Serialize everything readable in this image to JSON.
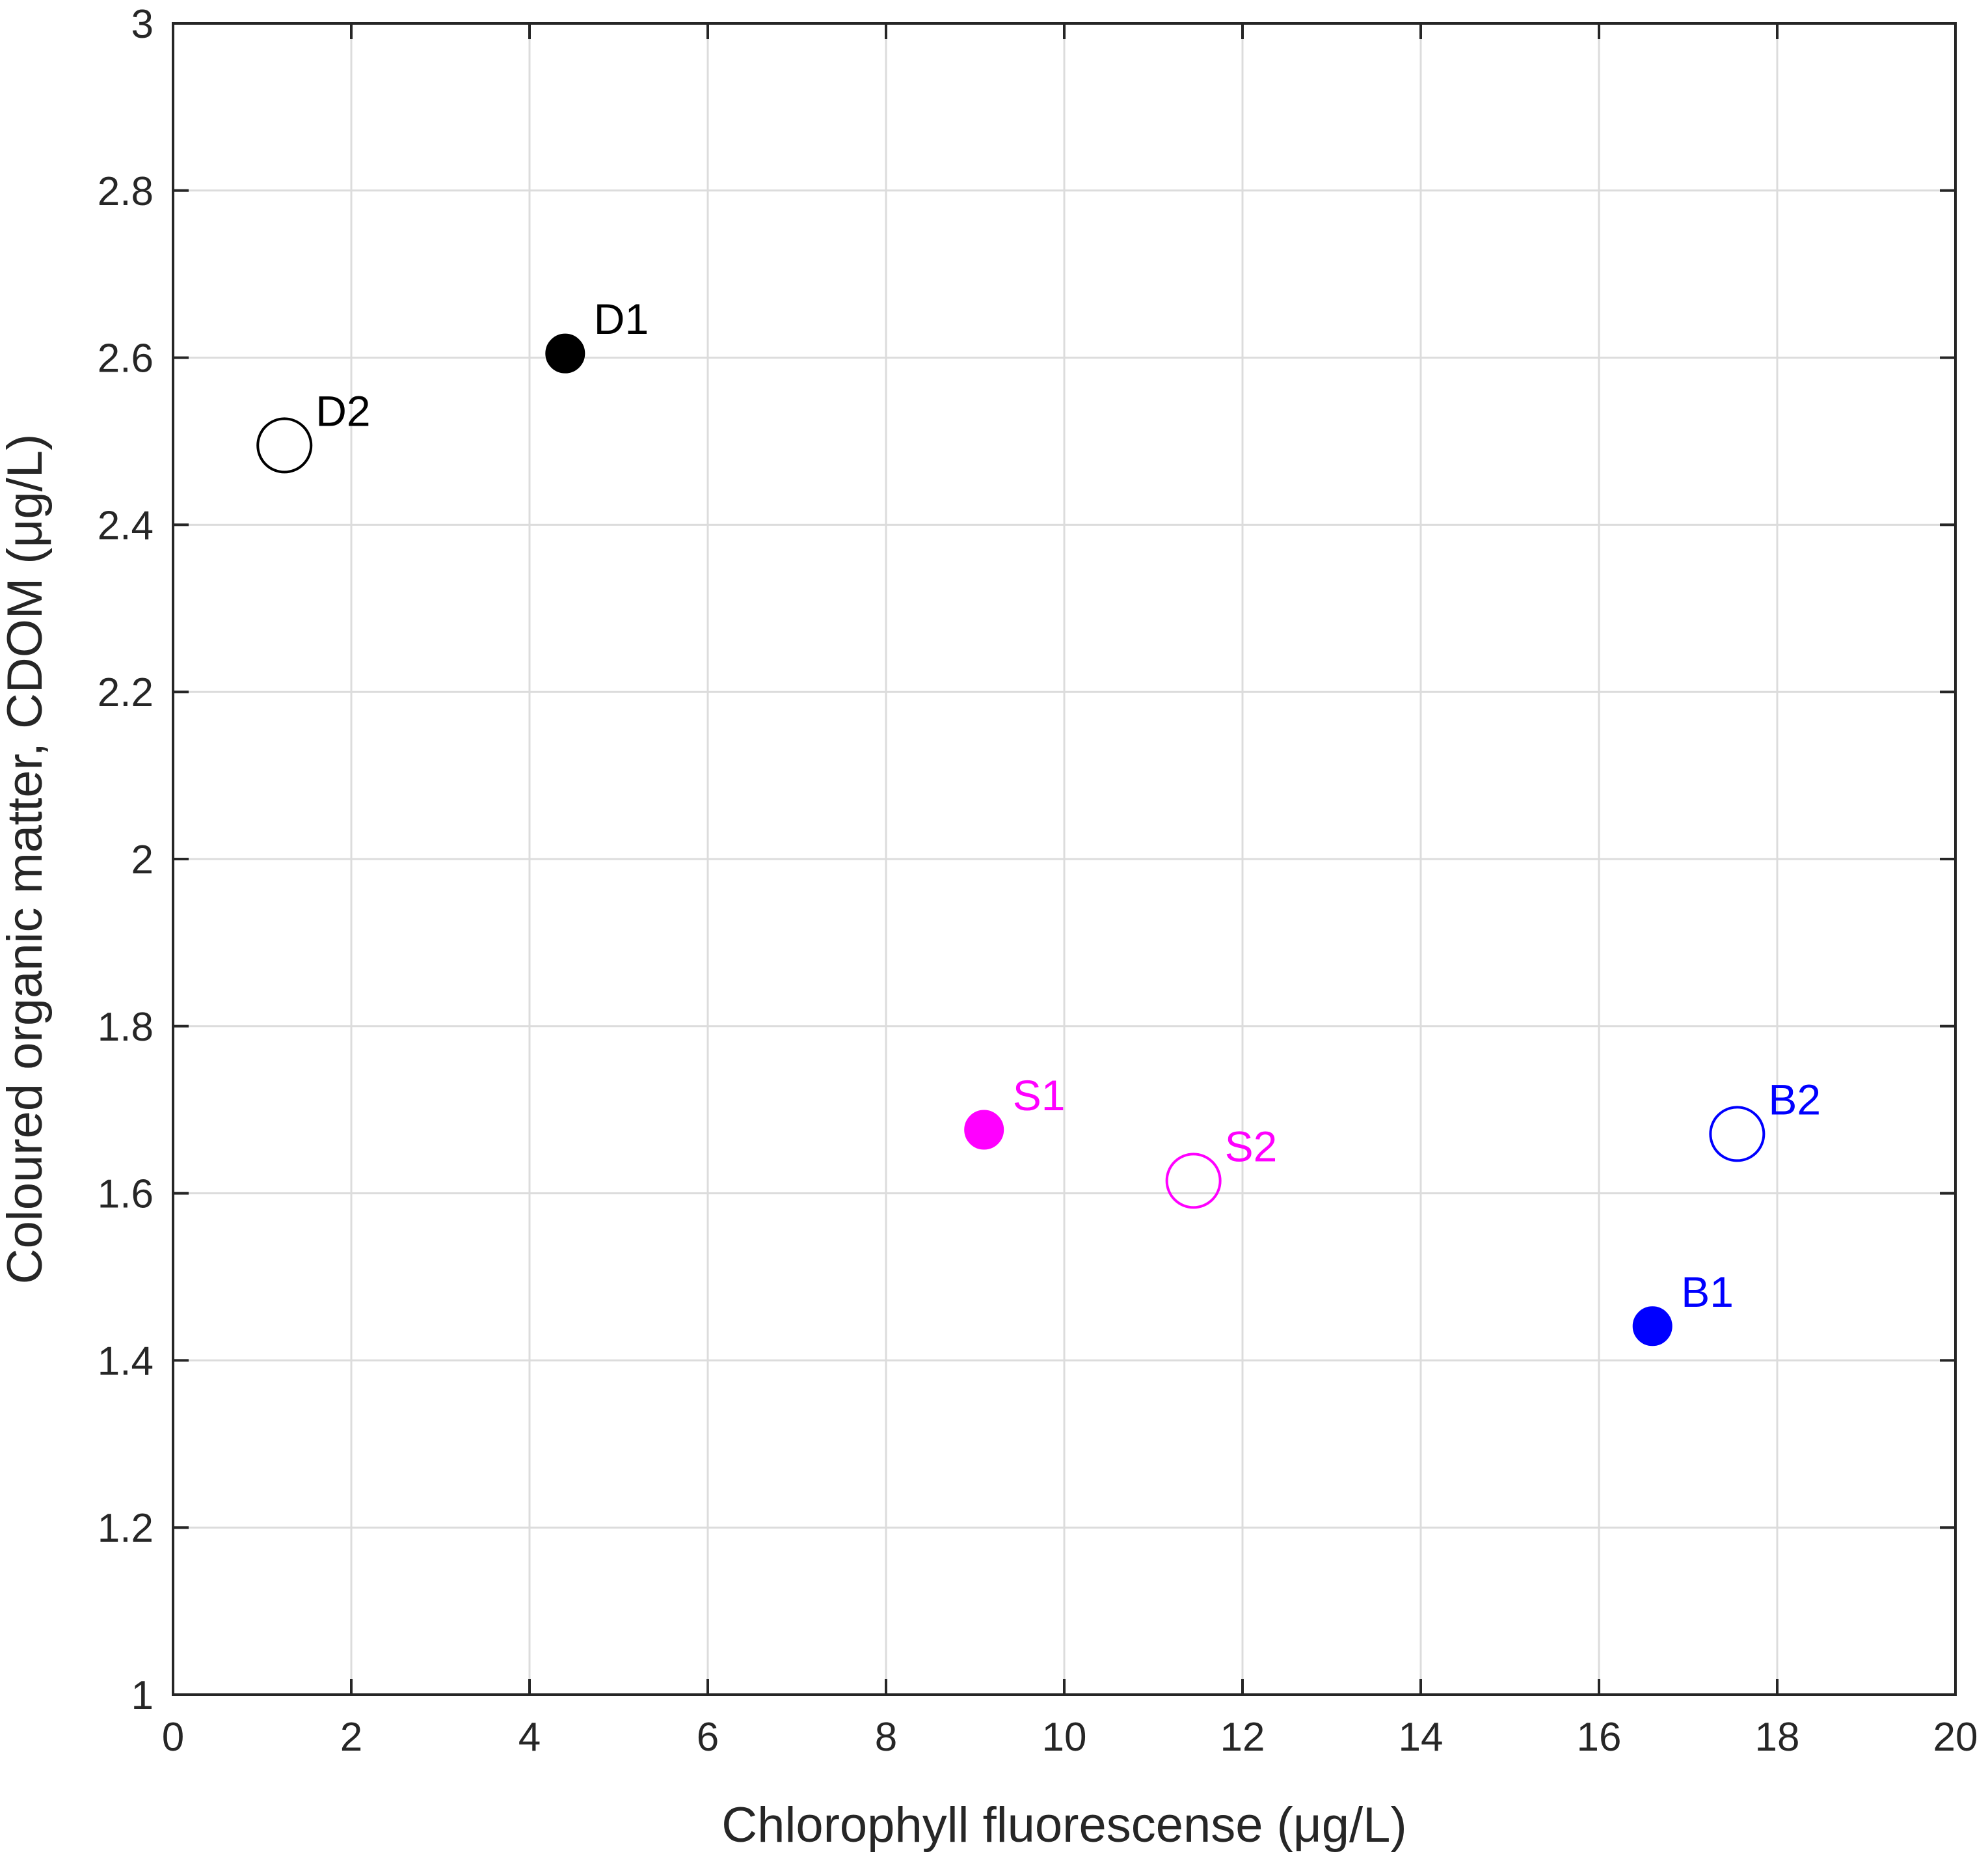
{
  "chart_data": {
    "type": "scatter",
    "xlabel": "Chlorophyll fluorescense (μg/L)",
    "ylabel": "Coloured organic matter, CDOM (μg/L)",
    "xlim": [
      0,
      20
    ],
    "ylim": [
      1,
      3
    ],
    "xticks": [
      "0",
      "2",
      "4",
      "6",
      "8",
      "10",
      "12",
      "14",
      "16",
      "18",
      "20"
    ],
    "yticks": [
      "1",
      "1.2",
      "1.4",
      "1.6",
      "1.8",
      "2",
      "2.2",
      "2.4",
      "2.6",
      "2.8",
      "3"
    ],
    "grid": true,
    "points": [
      {
        "label": "D1",
        "x": 4.4,
        "y": 2.605,
        "filled": true,
        "color": "#000000"
      },
      {
        "label": "D2",
        "x": 1.25,
        "y": 2.495,
        "filled": false,
        "color": "#000000"
      },
      {
        "label": "S1",
        "x": 9.1,
        "y": 1.676,
        "filled": true,
        "color": "#ff00ff"
      },
      {
        "label": "S2",
        "x": 11.45,
        "y": 1.615,
        "filled": false,
        "color": "#ff00ff"
      },
      {
        "label": "B1",
        "x": 16.6,
        "y": 1.441,
        "filled": true,
        "color": "#0000ff"
      },
      {
        "label": "B2",
        "x": 17.55,
        "y": 1.671,
        "filled": false,
        "color": "#0000ff"
      }
    ]
  }
}
